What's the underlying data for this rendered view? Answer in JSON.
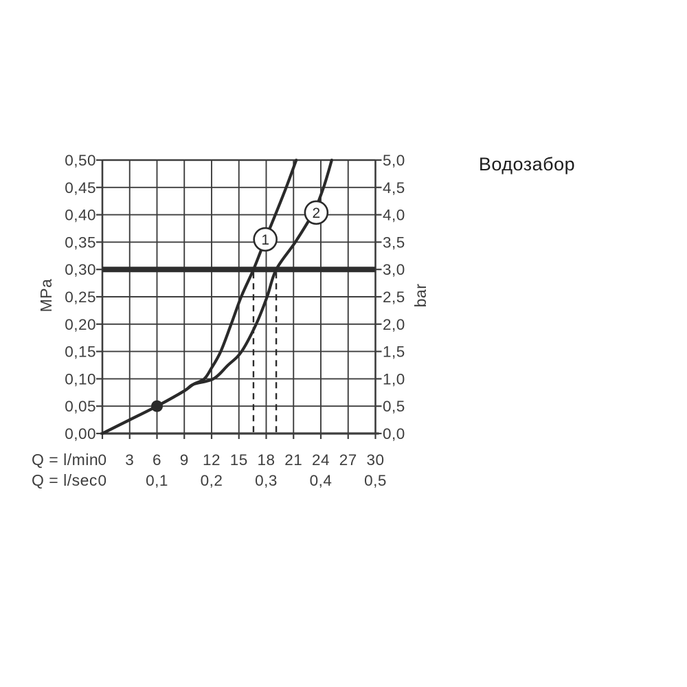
{
  "title": "Водозабор",
  "colors": {
    "background": "#ffffff",
    "grid": "#3d3d3d",
    "text": "#3d3d3d",
    "title_text": "#1e1e1e",
    "curve": "#2a2a2a",
    "reference_line": "#2e2e2e",
    "badge_fill": "#ffffff",
    "badge_stroke": "#2a2a2a",
    "marker": "#2a2a2a"
  },
  "chart_data": {
    "type": "line",
    "title": "Водозабор",
    "grid": true,
    "x_axis": {
      "primary_unit": "Q = l/min",
      "secondary_unit": "Q = l/sec",
      "min": 0,
      "max": 30,
      "tick_values": [
        0,
        3,
        6,
        9,
        12,
        15,
        18,
        21,
        24,
        27,
        30
      ],
      "tick_labels": [
        "0",
        "3",
        "6",
        "9",
        "12",
        "15",
        "18",
        "21",
        "24",
        "27",
        "30"
      ],
      "secondary_tick_values": [
        0,
        6,
        12,
        18,
        24,
        30
      ],
      "secondary_tick_labels": [
        "0",
        "0,1",
        "0,2",
        "0,3",
        "0,4",
        "0,5"
      ]
    },
    "y_left_axis": {
      "unit": "MPa",
      "min": 0,
      "max": 0.5,
      "tick_labels_top_to_bottom": [
        "0,50",
        "0,45",
        "0,40",
        "0,35",
        "0,30",
        "0,25",
        "0,20",
        "0,15",
        "0,10",
        "0,05",
        "0,00"
      ]
    },
    "y_right_axis": {
      "unit": "bar",
      "min": 0,
      "max": 5,
      "tick_labels_top_to_bottom": [
        "5,0",
        "4,5",
        "4,0",
        "3,5",
        "3,0",
        "2,5",
        "2,0",
        "1,5",
        "1,0",
        "0,5",
        "0,0"
      ]
    },
    "series": [
      {
        "name": "1",
        "points_lmin_bar": [
          [
            0,
            0
          ],
          [
            3,
            0.25
          ],
          [
            6,
            0.5
          ],
          [
            9,
            0.78
          ],
          [
            10,
            0.9
          ],
          [
            11.2,
            1.0
          ],
          [
            12,
            1.2
          ],
          [
            13,
            1.5
          ],
          [
            14.15,
            2.0
          ],
          [
            15.25,
            2.5
          ],
          [
            16.6,
            3.0
          ],
          [
            17.9,
            3.55
          ],
          [
            19.0,
            4.0
          ],
          [
            20.2,
            4.5
          ],
          [
            21.3,
            5.0
          ]
        ]
      },
      {
        "name": "2",
        "points_lmin_bar": [
          [
            0,
            0
          ],
          [
            3,
            0.25
          ],
          [
            6,
            0.5
          ],
          [
            9,
            0.78
          ],
          [
            10,
            0.9
          ],
          [
            12.2,
            1.0
          ],
          [
            13.8,
            1.25
          ],
          [
            15.3,
            1.5
          ],
          [
            16.9,
            2.0
          ],
          [
            18.1,
            2.5
          ],
          [
            19.1,
            3.0
          ],
          [
            21.2,
            3.5
          ],
          [
            23.2,
            4.05
          ],
          [
            24.3,
            4.5
          ],
          [
            25.2,
            5.0
          ]
        ]
      }
    ],
    "badges": [
      {
        "label": "1",
        "x": 17.9,
        "y": 3.55
      },
      {
        "label": "2",
        "x": 23.5,
        "y": 4.04
      }
    ],
    "marker_point": {
      "x": 6,
      "y": 0.5
    },
    "reference_line_bar": 3.0,
    "drop_lines": [
      {
        "x": 16.6,
        "y_from": 3.0
      },
      {
        "x": 19.1,
        "y_from": 3.0
      }
    ]
  }
}
